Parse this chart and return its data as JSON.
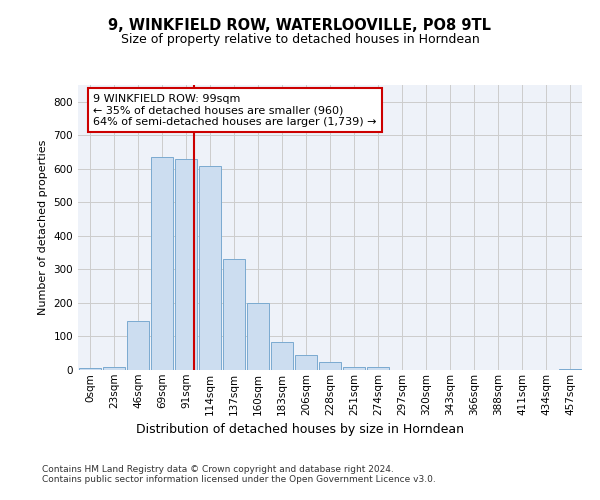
{
  "title_line1": "9, WINKFIELD ROW, WATERLOOVILLE, PO8 9TL",
  "title_line2": "Size of property relative to detached houses in Horndean",
  "xlabel": "Distribution of detached houses by size in Horndean",
  "ylabel": "Number of detached properties",
  "categories": [
    "0sqm",
    "23sqm",
    "46sqm",
    "69sqm",
    "91sqm",
    "114sqm",
    "137sqm",
    "160sqm",
    "183sqm",
    "206sqm",
    "228sqm",
    "251sqm",
    "274sqm",
    "297sqm",
    "320sqm",
    "343sqm",
    "366sqm",
    "388sqm",
    "411sqm",
    "434sqm",
    "457sqm"
  ],
  "bar_heights": [
    5,
    10,
    145,
    635,
    630,
    608,
    330,
    200,
    85,
    45,
    25,
    10,
    9,
    0,
    0,
    0,
    0,
    0,
    0,
    0,
    3
  ],
  "bar_color": "#ccddf0",
  "bar_edge_color": "#7aaad0",
  "vline_color": "#cc0000",
  "vline_x": 4.35,
  "annotation_text": "9 WINKFIELD ROW: 99sqm\n← 35% of detached houses are smaller (960)\n64% of semi-detached houses are larger (1,739) →",
  "annotation_box_color": "#ffffff",
  "annotation_box_edge": "#cc0000",
  "ylim": [
    0,
    850
  ],
  "yticks": [
    0,
    100,
    200,
    300,
    400,
    500,
    600,
    700,
    800
  ],
  "footer_text": "Contains HM Land Registry data © Crown copyright and database right 2024.\nContains public sector information licensed under the Open Government Licence v3.0.",
  "grid_color": "#cccccc",
  "bg_color": "#eef2f9",
  "title1_fontsize": 10.5,
  "title2_fontsize": 9,
  "ylabel_fontsize": 8,
  "xlabel_fontsize": 9,
  "tick_fontsize": 7.5,
  "footer_fontsize": 6.5
}
